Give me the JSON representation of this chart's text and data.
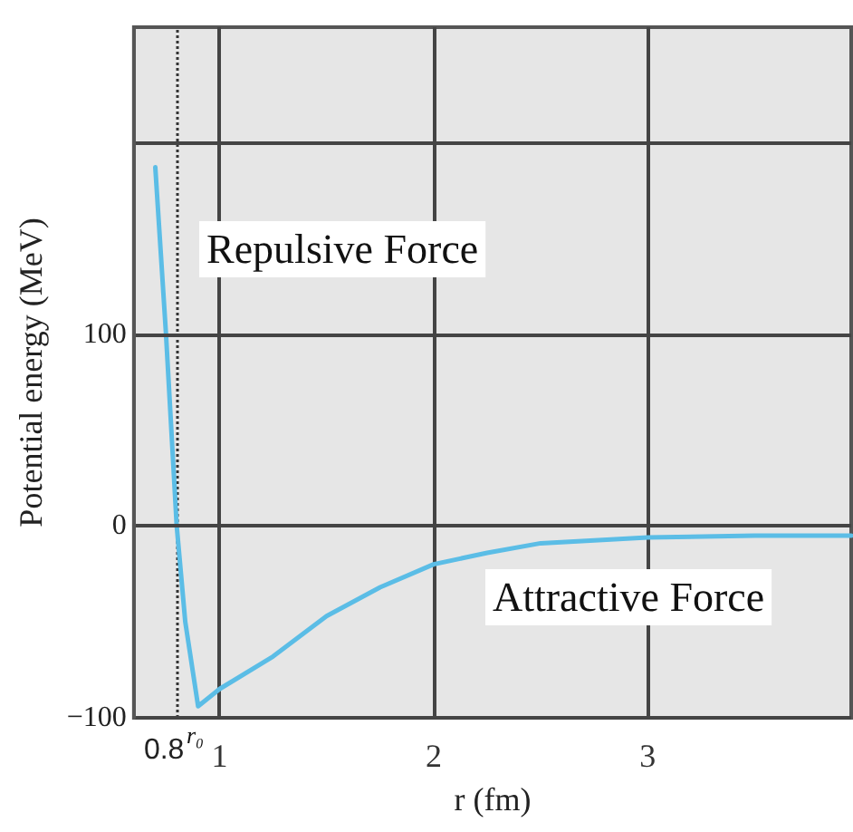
{
  "chart_data": {
    "type": "line",
    "xlabel": "r (fm)",
    "ylabel": "Potential energy (MeV)",
    "xlim": [
      0.6,
      3.95
    ],
    "xticks": [
      1,
      2,
      3
    ],
    "ylim": [
      -100,
      260
    ],
    "yticks": [
      -100,
      0,
      100,
      {
        "value": 200,
        "label": null
      }
    ],
    "grid": true,
    "marker": "none",
    "line_style": "solid",
    "series": [
      {
        "color": "#5bbde6",
        "x": [
          0.7,
          0.75,
          0.8,
          0.84,
          0.9,
          1.0,
          1.25,
          1.5,
          1.75,
          2.0,
          2.25,
          2.5,
          3.0,
          3.5,
          3.95
        ],
        "values": [
          187,
          100,
          0,
          -50,
          -94,
          -85,
          -68,
          -47,
          -32,
          -20,
          -14,
          -9,
          -6,
          -5,
          -5
        ]
      }
    ],
    "ref_lines": [
      {
        "axis": "x",
        "value": 0.8,
        "label": "0.8",
        "line_style": "dotted",
        "color": "#333333"
      }
    ],
    "annotations": [
      "Repulsive Force",
      "Attractive Force",
      "r₀"
    ]
  }
}
